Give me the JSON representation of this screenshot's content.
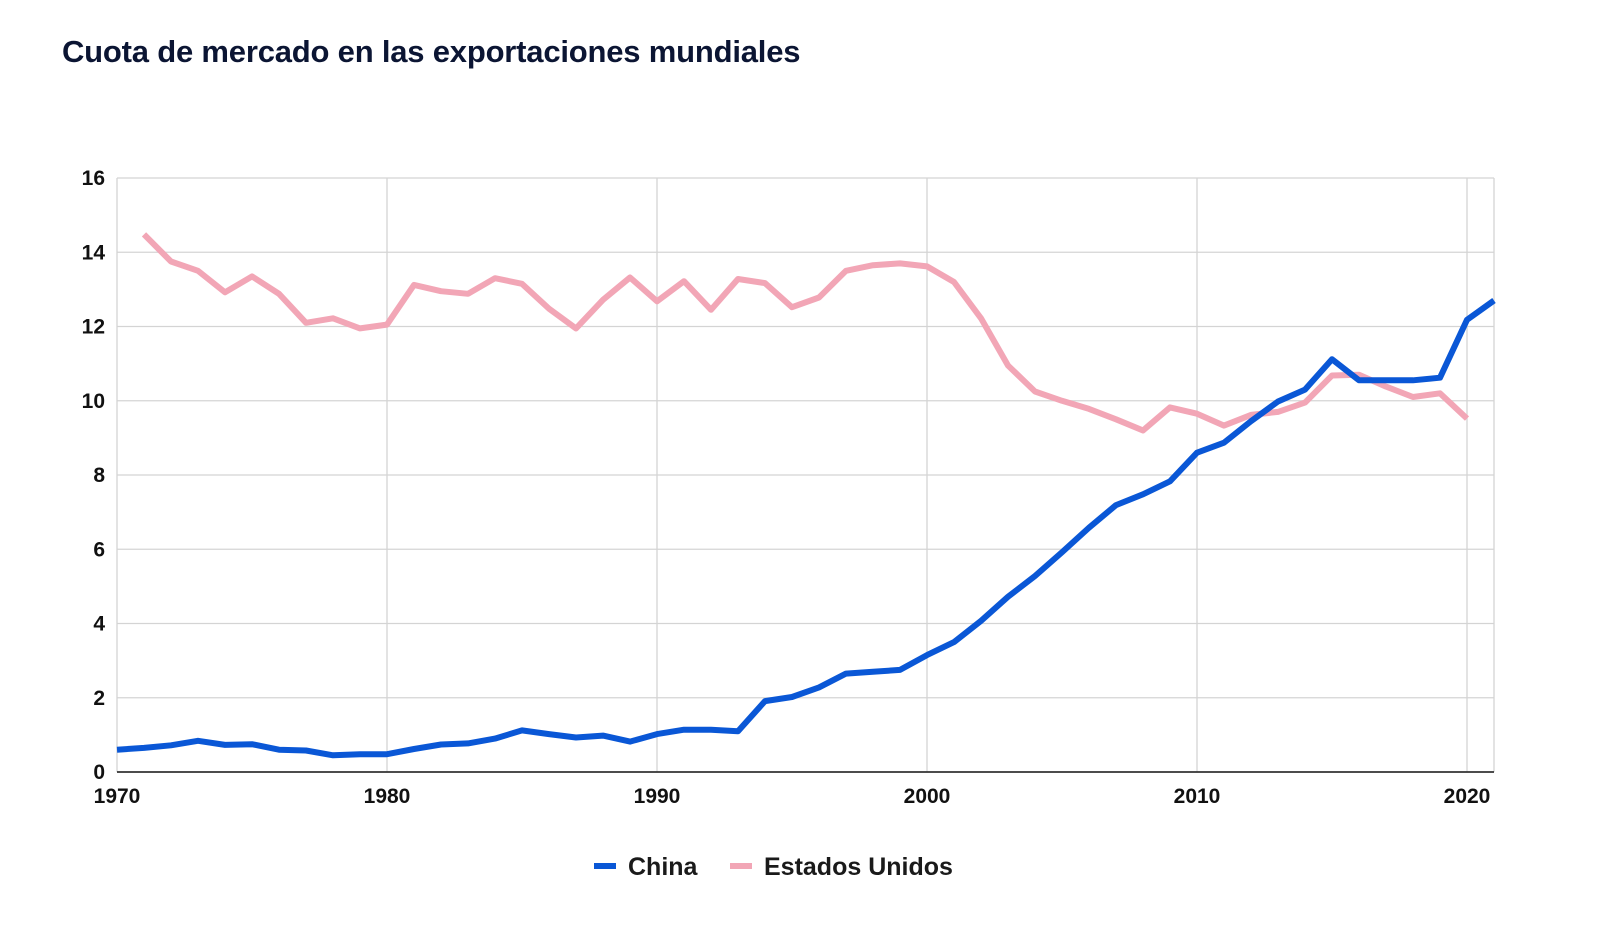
{
  "chart_data": {
    "type": "line",
    "title": "Cuota de mercado en las exportaciones mundiales",
    "xlabel": "",
    "ylabel": "",
    "xlim": [
      1970,
      2021
    ],
    "ylim": [
      0,
      16
    ],
    "x_ticks": [
      "1970",
      "1980",
      "1990",
      "2000",
      "2010",
      "2020"
    ],
    "y_ticks": [
      "0",
      "2",
      "4",
      "6",
      "8",
      "10",
      "12",
      "14",
      "16"
    ],
    "grid": true,
    "legend_position": "bottom-center",
    "series": [
      {
        "name": "China",
        "color": "#0a57d6",
        "x": [
          1970,
          1971,
          1972,
          1973,
          1974,
          1975,
          1976,
          1977,
          1978,
          1979,
          1980,
          1981,
          1982,
          1983,
          1984,
          1985,
          1986,
          1987,
          1988,
          1989,
          1990,
          1991,
          1992,
          1993,
          1994,
          1995,
          1996,
          1997,
          1998,
          1999,
          2000,
          2001,
          2002,
          2003,
          2004,
          2005,
          2006,
          2007,
          2008,
          2009,
          2010,
          2011,
          2012,
          2013,
          2014,
          2015,
          2016,
          2017,
          2018,
          2019,
          2020,
          2021
        ],
        "values": [
          0.6,
          0.65,
          0.72,
          0.84,
          0.73,
          0.75,
          0.6,
          0.58,
          0.45,
          0.48,
          0.48,
          0.62,
          0.74,
          0.77,
          0.9,
          1.12,
          1.02,
          0.93,
          0.98,
          0.82,
          1.02,
          1.14,
          1.14,
          1.1,
          1.91,
          2.02,
          2.28,
          2.65,
          2.7,
          2.75,
          3.15,
          3.5,
          4.07,
          4.72,
          5.28,
          5.92,
          6.58,
          7.19,
          7.48,
          7.83,
          8.6,
          8.87,
          9.45,
          9.98,
          10.3,
          11.12,
          10.55,
          10.55,
          10.55,
          10.62,
          12.18,
          12.7
        ]
      },
      {
        "name": "Estados Unidos",
        "color": "#f2a6b6",
        "x": [
          1971,
          1972,
          1973,
          1974,
          1975,
          1976,
          1977,
          1978,
          1979,
          1980,
          1981,
          1982,
          1983,
          1984,
          1985,
          1986,
          1987,
          1988,
          1989,
          1990,
          1991,
          1992,
          1993,
          1994,
          1995,
          1996,
          1997,
          1998,
          1999,
          2000,
          2001,
          2002,
          2003,
          2004,
          2005,
          2006,
          2007,
          2008,
          2009,
          2010,
          2011,
          2012,
          2013,
          2014,
          2015,
          2016,
          2017,
          2018,
          2019,
          2020
        ],
        "values": [
          14.48,
          13.75,
          13.5,
          12.92,
          13.35,
          12.88,
          12.1,
          12.22,
          11.95,
          12.05,
          13.12,
          12.95,
          12.88,
          13.3,
          13.15,
          12.48,
          11.95,
          12.72,
          13.32,
          12.68,
          13.22,
          12.45,
          13.28,
          13.17,
          12.52,
          12.78,
          13.5,
          13.65,
          13.7,
          13.62,
          13.2,
          12.22,
          10.95,
          10.25,
          10.0,
          9.78,
          9.5,
          9.2,
          9.82,
          9.65,
          9.33,
          9.62,
          9.7,
          9.95,
          10.68,
          10.7,
          10.38,
          10.1,
          10.2,
          9.52
        ]
      }
    ]
  }
}
